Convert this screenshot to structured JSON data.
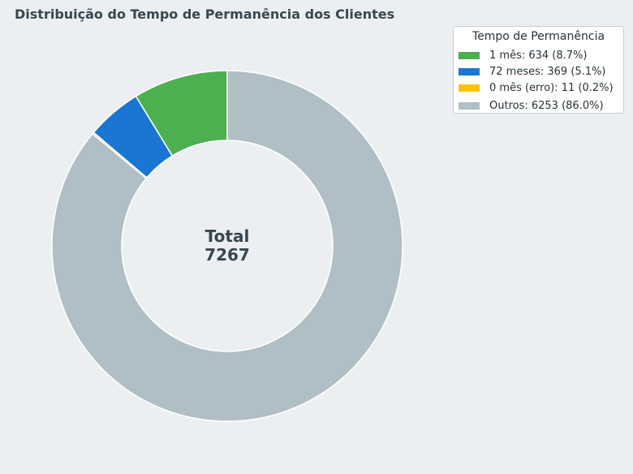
{
  "chart_data": {
    "type": "pie",
    "variant": "donut",
    "title": "Distribuição do Tempo de Permanência dos Clientes",
    "slices": [
      {
        "label": "1 mês: 634 (8.7%)",
        "value": 634,
        "percent": 8.7,
        "color": "#4CAF50"
      },
      {
        "label": "72 meses: 369 (5.1%)",
        "value": 369,
        "percent": 5.1,
        "color": "#1976D2"
      },
      {
        "label": "0 mês (erro): 11 (0.2%)",
        "value": 11,
        "percent": 0.2,
        "color": "#FFC107"
      },
      {
        "label": "Outros: 6253 (86.0%)",
        "value": 6253,
        "percent": 86.0,
        "color": "#B0BEC5"
      }
    ],
    "center_label": "Total",
    "center_value": "7267",
    "legend_title": "Tempo de Permanência",
    "legend_position": "top-right"
  }
}
